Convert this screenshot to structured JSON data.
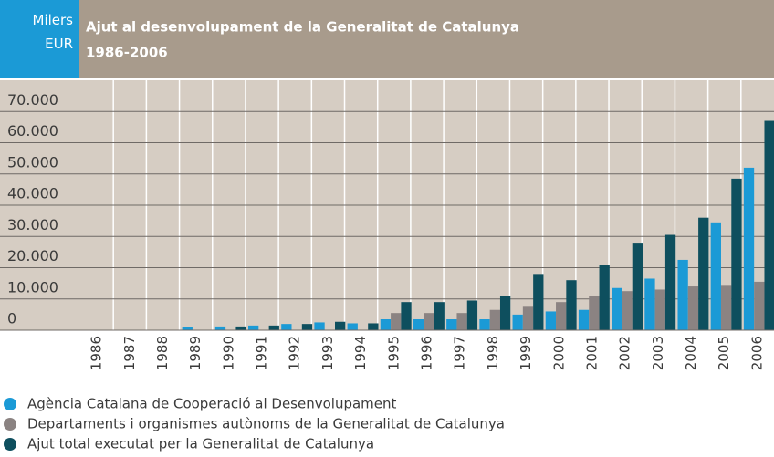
{
  "chart_data": {
    "type": "bar",
    "title": "Ajut al desenvolupament de la Generalitat de Catalunya",
    "subtitle": "1986-2006",
    "ylabel": "Milers EUR",
    "categories": [
      "1986",
      "1987",
      "1988",
      "1989",
      "1990",
      "1991",
      "1992",
      "1993",
      "1994",
      "1995",
      "1996",
      "1997",
      "1998",
      "1999",
      "2000",
      "2001",
      "2002",
      "2003",
      "2004",
      "2005",
      "2006"
    ],
    "series": [
      {
        "name": "Agència Catalana de Cooperació al Desenvolupament",
        "color": "#1b9ad6",
        "values": [
          0,
          0,
          0,
          1000,
          1200,
          1500,
          2000,
          2500,
          2200,
          3500,
          3500,
          3500,
          3500,
          5000,
          6000,
          6500,
          13500,
          16500,
          22500,
          34500,
          52000
        ]
      },
      {
        "name": "Departaments i organismes autònoms de la Generalitat de Catalunya",
        "color": "#8b8382",
        "values": [
          0,
          0,
          0,
          0,
          0,
          0,
          0,
          0,
          0,
          5500,
          5500,
          5500,
          6500,
          7500,
          9000,
          11000,
          12500,
          13000,
          14000,
          14500,
          15500
        ]
      },
      {
        "name": "Ajut total executat per la Generalitat de Catalunya",
        "color": "#0e4f5e",
        "values": [
          0,
          0,
          0,
          0,
          1200,
          1500,
          2000,
          2700,
          2200,
          9000,
          9000,
          9500,
          11000,
          18000,
          16000,
          21000,
          28000,
          30500,
          36000,
          48500,
          67000
        ]
      }
    ],
    "ylim": [
      0,
      80000
    ],
    "yticks": [
      0,
      {
        "value": 10000,
        "label": "10.000"
      },
      {
        "value": 20000,
        "label": "20.000"
      },
      {
        "value": 30000,
        "label": "30.000"
      },
      {
        "value": 40000,
        "label": "40.000"
      },
      {
        "value": 50000,
        "label": "50.000"
      },
      {
        "value": 60000,
        "label": "60.000"
      },
      {
        "value": 70000,
        "label": "70.000"
      }
    ],
    "grid": true
  }
}
